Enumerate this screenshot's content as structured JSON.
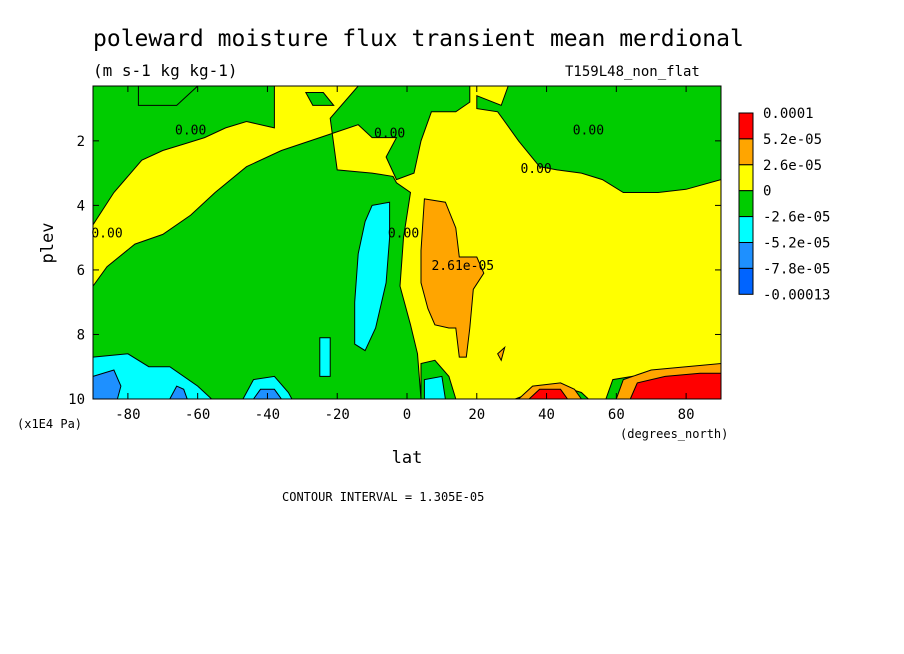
{
  "chart_data": {
    "type": "contour",
    "title": "poleward moisture flux transient mean merdional",
    "units": "(m s-1 kg kg-1)",
    "experiment": "T159L48_non_flat",
    "xlabel": "lat",
    "xunits": "(degrees_north)",
    "ylabel": "plev",
    "yunits": "(x1E4 Pa)",
    "xlim": [
      -90,
      90
    ],
    "ylim": [
      10,
      0.3
    ],
    "y_inverted": true,
    "x_ticks": [
      -80,
      -60,
      -40,
      -20,
      0,
      20,
      40,
      60,
      80
    ],
    "x_tick_labels": [
      "-80",
      "-60",
      "-40",
      "-20",
      "0",
      "20",
      "40",
      "60",
      "80"
    ],
    "y_ticks": [
      2,
      4,
      6,
      8,
      10
    ],
    "y_tick_labels": [
      "2",
      "4",
      "6",
      "8",
      "10"
    ],
    "contour_interval_text": "CONTOUR INTERVAL = 1.305E-05",
    "colorbar": {
      "labels": [
        "0.0001",
        "5.2e-05",
        "2.6e-05",
        "0",
        "-2.6e-05",
        "-5.2e-05",
        "-7.8e-05",
        "-0.00013"
      ],
      "colors": [
        "#ff0000",
        "#ffa500",
        "#ffff00",
        "#00cc00",
        "#00ffff",
        "#1e90ff",
        "#0064ff"
      ]
    },
    "contour_labels": [
      {
        "text": "0.00",
        "lat": -62,
        "plev": 1.8
      },
      {
        "text": "0.00",
        "lat": -5,
        "plev": 1.9
      },
      {
        "text": "0.00",
        "lat": 52,
        "plev": 1.8
      },
      {
        "text": "0.00",
        "lat": 37,
        "plev": 3.0
      },
      {
        "text": "0.00",
        "lat": -86,
        "plev": 5.0
      },
      {
        "text": "0.00",
        "lat": -1,
        "plev": 5.0
      },
      {
        "text": "2.61e-05",
        "lat": 16,
        "plev": 6.0
      }
    ],
    "regions": [
      {
        "level": "-2.6e-05",
        "polygon": [
          [
            -90,
            0.3
          ],
          [
            -38,
            0.3
          ],
          [
            -38,
            1.6
          ],
          [
            -46,
            1.4
          ],
          [
            -52,
            1.6
          ],
          [
            -58,
            1.9
          ],
          [
            -64,
            2.1
          ],
          [
            -70,
            2.3
          ],
          [
            -76,
            2.6
          ],
          [
            -84,
            3.6
          ],
          [
            -90,
            4.6
          ]
        ]
      },
      {
        "level": "-2.6e-05",
        "polygon": [
          [
            -77,
            0.3
          ],
          [
            -77,
            0.9
          ],
          [
            -66,
            0.9
          ],
          [
            -60,
            0.3
          ]
        ]
      },
      {
        "level": "-2.6e-05",
        "polygon": [
          [
            -29,
            0.5
          ],
          [
            -24,
            0.5
          ],
          [
            -21,
            0.9
          ],
          [
            -27,
            0.9
          ]
        ]
      },
      {
        "level": "-2.6e-05",
        "polygon": [
          [
            -14,
            0.3
          ],
          [
            18,
            0.3
          ],
          [
            18,
            0.8
          ],
          [
            14,
            1.1
          ],
          [
            7,
            1.1
          ],
          [
            4,
            2.0
          ],
          [
            2,
            3.0
          ],
          [
            -3,
            3.2
          ],
          [
            -6,
            2.5
          ],
          [
            -3,
            1.9
          ],
          [
            -10,
            1.9
          ],
          [
            -14,
            1.5
          ],
          [
            -25,
            1.9
          ],
          [
            -36,
            2.3
          ],
          [
            -46,
            2.8
          ],
          [
            -55,
            3.6
          ],
          [
            -62,
            4.3
          ],
          [
            -70,
            4.9
          ],
          [
            -78,
            5.2
          ],
          [
            -86,
            5.9
          ],
          [
            -90,
            6.5
          ],
          [
            -90,
            10
          ],
          [
            -30,
            10
          ],
          [
            0,
            10
          ],
          [
            4,
            10
          ],
          [
            3,
            8.6
          ],
          [
            1,
            7.7
          ],
          [
            -2,
            6.5
          ],
          [
            -1,
            5.0
          ],
          [
            1,
            3.6
          ],
          [
            -3,
            3.3
          ],
          [
            -4,
            3.1
          ],
          [
            -10,
            3.0
          ],
          [
            -20,
            2.9
          ],
          [
            -22,
            1.3
          ]
        ]
      },
      {
        "level": "-2.6e-05",
        "polygon": [
          [
            29,
            0.3
          ],
          [
            90,
            0.3
          ],
          [
            90,
            3.2
          ],
          [
            80,
            3.5
          ],
          [
            72,
            3.6
          ],
          [
            62,
            3.6
          ],
          [
            56,
            3.2
          ],
          [
            50,
            3.0
          ],
          [
            43,
            2.9
          ],
          [
            38,
            2.8
          ],
          [
            32,
            2.0
          ],
          [
            28,
            1.4
          ],
          [
            26,
            1.1
          ],
          [
            20,
            1.0
          ],
          [
            20,
            0.6
          ],
          [
            27,
            0.9
          ]
        ]
      },
      {
        "level": "-2.6e-05",
        "polygon": [
          [
            4,
            10
          ],
          [
            4,
            8.9
          ],
          [
            8,
            8.8
          ],
          [
            12,
            9.3
          ],
          [
            14,
            10
          ]
        ]
      },
      {
        "level": "-2.6e-05",
        "polygon": [
          [
            31,
            10
          ],
          [
            36,
            9.8
          ],
          [
            44,
            9.6
          ],
          [
            50,
            9.8
          ],
          [
            52,
            10
          ]
        ]
      },
      {
        "level": "-2.6e-05",
        "polygon": [
          [
            57,
            10
          ],
          [
            59,
            9.4
          ],
          [
            70,
            9.2
          ],
          [
            82,
            9.1
          ],
          [
            90,
            9.0
          ],
          [
            90,
            10
          ]
        ]
      },
      {
        "level": "-5.2e-05",
        "polygon": [
          [
            -10,
            4.0
          ],
          [
            -5,
            3.9
          ],
          [
            -5,
            5.0
          ],
          [
            -6,
            6.4
          ],
          [
            -9,
            7.8
          ],
          [
            -12,
            8.5
          ],
          [
            -15,
            8.3
          ],
          [
            -15,
            7.0
          ],
          [
            -14,
            5.5
          ],
          [
            -12,
            4.5
          ]
        ]
      },
      {
        "level": "-5.2e-05",
        "polygon": [
          [
            -25,
            8.1
          ],
          [
            -22,
            8.1
          ],
          [
            -22,
            9.3
          ],
          [
            -25,
            9.3
          ]
        ]
      },
      {
        "level": "-5.2e-05",
        "polygon": [
          [
            -90,
            8.7
          ],
          [
            -80,
            8.6
          ],
          [
            -74,
            9.0
          ],
          [
            -68,
            9.0
          ],
          [
            -60,
            9.6
          ],
          [
            -56,
            10
          ],
          [
            -90,
            10
          ]
        ]
      },
      {
        "level": "-5.2e-05",
        "polygon": [
          [
            -47,
            10
          ],
          [
            -44,
            9.4
          ],
          [
            -38,
            9.3
          ],
          [
            -34,
            9.8
          ],
          [
            -33,
            10
          ]
        ]
      },
      {
        "level": "-5.2e-05",
        "polygon": [
          [
            5,
            9.4
          ],
          [
            10,
            9.3
          ],
          [
            11,
            10
          ],
          [
            5,
            10
          ]
        ]
      },
      {
        "level": "-7.8e-05",
        "polygon": [
          [
            -90,
            9.3
          ],
          [
            -84,
            9.1
          ],
          [
            -82,
            9.6
          ],
          [
            -83,
            10
          ],
          [
            -90,
            10
          ]
        ]
      },
      {
        "level": "-7.8e-05",
        "polygon": [
          [
            -68,
            10
          ],
          [
            -66,
            9.6
          ],
          [
            -64,
            9.7
          ],
          [
            -63,
            10
          ]
        ]
      },
      {
        "level": "-7.8e-05",
        "polygon": [
          [
            -44,
            10
          ],
          [
            -42,
            9.7
          ],
          [
            -38,
            9.7
          ],
          [
            -36,
            10
          ]
        ]
      },
      {
        "level": "2.6e-05",
        "polygon": [
          [
            5,
            3.8
          ],
          [
            11,
            3.9
          ],
          [
            14,
            4.7
          ],
          [
            15,
            5.6
          ],
          [
            20,
            5.6
          ],
          [
            22,
            6.1
          ],
          [
            19,
            6.6
          ],
          [
            18,
            7.8
          ],
          [
            17,
            8.7
          ],
          [
            15,
            8.7
          ],
          [
            14,
            7.8
          ],
          [
            12,
            7.8
          ],
          [
            8,
            7.7
          ],
          [
            6,
            7.2
          ],
          [
            4,
            6.4
          ],
          [
            4,
            5.4
          ]
        ]
      },
      {
        "level": "2.6e-05",
        "polygon": [
          [
            32,
            10
          ],
          [
            36,
            9.6
          ],
          [
            44,
            9.5
          ],
          [
            48,
            9.7
          ],
          [
            50,
            10
          ]
        ]
      },
      {
        "level": "2.6e-05",
        "polygon": [
          [
            60,
            10
          ],
          [
            62,
            9.4
          ],
          [
            70,
            9.1
          ],
          [
            80,
            9.0
          ],
          [
            90,
            8.9
          ],
          [
            90,
            10
          ]
        ]
      },
      {
        "level": "2.6e-05",
        "polygon": [
          [
            26,
            8.6
          ],
          [
            28,
            8.4
          ],
          [
            27,
            8.8
          ]
        ]
      },
      {
        "level": "5.2e-05",
        "polygon": [
          [
            35,
            10
          ],
          [
            38,
            9.7
          ],
          [
            44,
            9.7
          ],
          [
            46,
            10
          ]
        ]
      },
      {
        "level": "5.2e-05",
        "polygon": [
          [
            64,
            10
          ],
          [
            66,
            9.5
          ],
          [
            74,
            9.3
          ],
          [
            84,
            9.2
          ],
          [
            90,
            9.2
          ],
          [
            90,
            10
          ]
        ]
      }
    ]
  }
}
